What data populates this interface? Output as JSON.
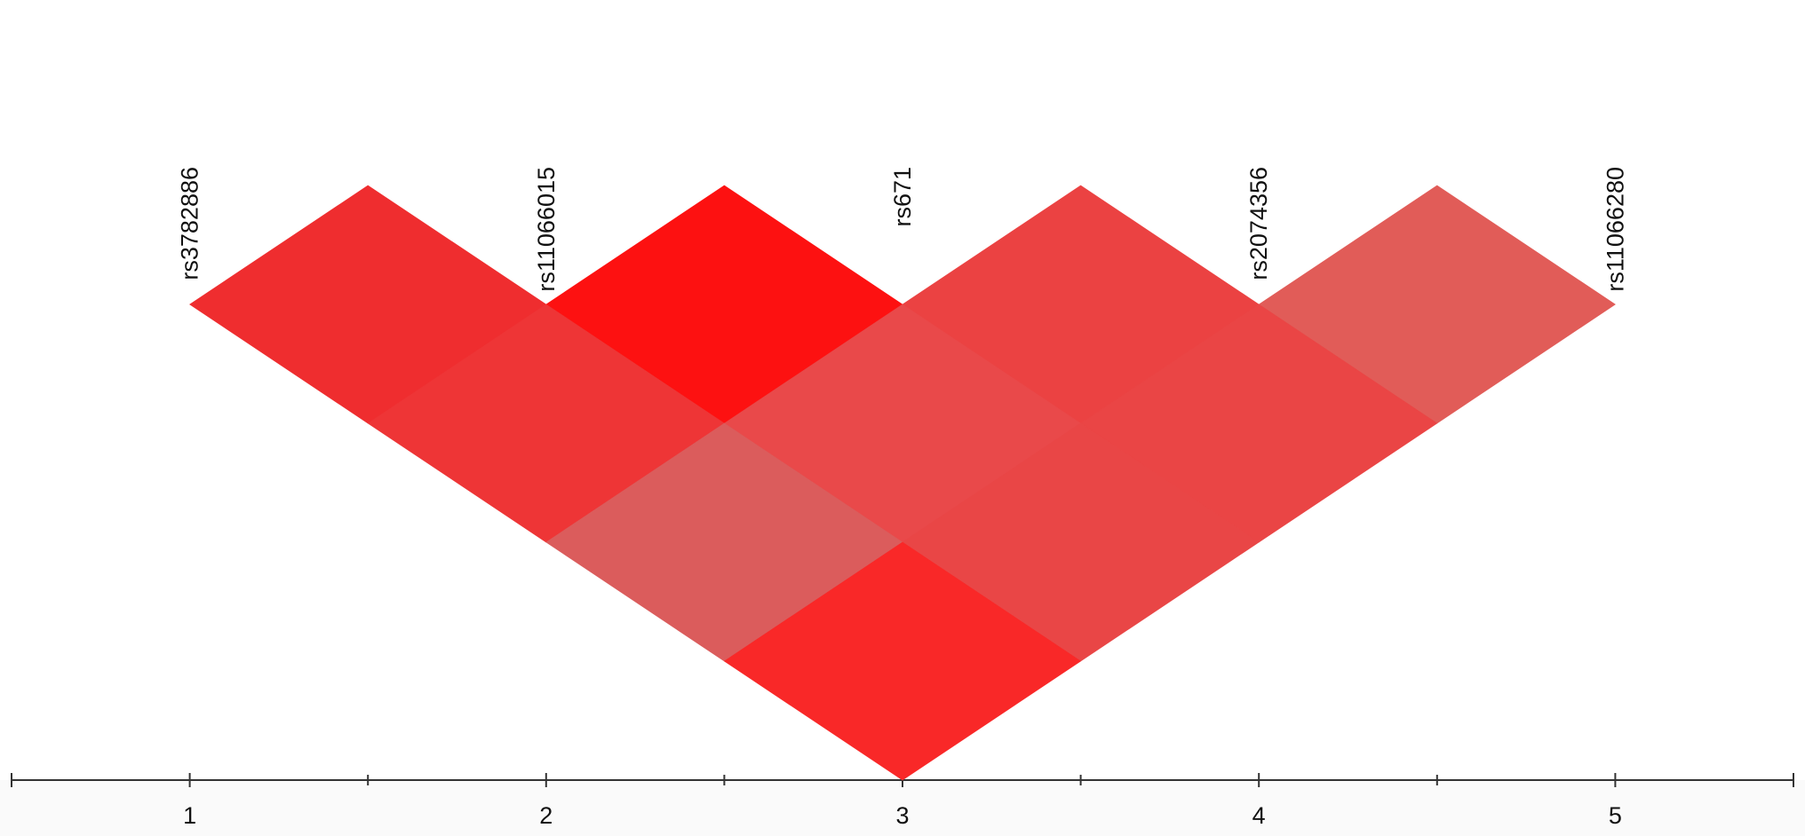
{
  "chart_data": {
    "type": "ld_heatmap",
    "snps": [
      "rs3782886",
      "rs11066015",
      "rs671",
      "rs2074356",
      "rs11066280"
    ],
    "snp_x": [
      1,
      2,
      3,
      4,
      5
    ],
    "cells": [
      {
        "pair": [
          1,
          2
        ],
        "color": "#ef2d2f"
      },
      {
        "pair": [
          2,
          3
        ],
        "color": "#fd1111"
      },
      {
        "pair": [
          3,
          4
        ],
        "color": "#eb4242"
      },
      {
        "pair": [
          4,
          5
        ],
        "color": "#e15c58"
      },
      {
        "pair": [
          1,
          3
        ],
        "color": "#ee3536"
      },
      {
        "pair": [
          2,
          4
        ],
        "color": "#e9494a"
      },
      {
        "pair": [
          3,
          5
        ],
        "color": "#ea4545"
      },
      {
        "pair": [
          1,
          4
        ],
        "color": "#db5c5c"
      },
      {
        "pair": [
          2,
          5
        ],
        "color": "#e94646"
      },
      {
        "pair": [
          1,
          5
        ],
        "color": "#f92828"
      }
    ],
    "xlim": [
      0.5,
      5.5
    ],
    "xticks": [
      1,
      2,
      3,
      4,
      5
    ],
    "minor_xticks": [
      1.5,
      2.5,
      3.5,
      4.5
    ]
  }
}
